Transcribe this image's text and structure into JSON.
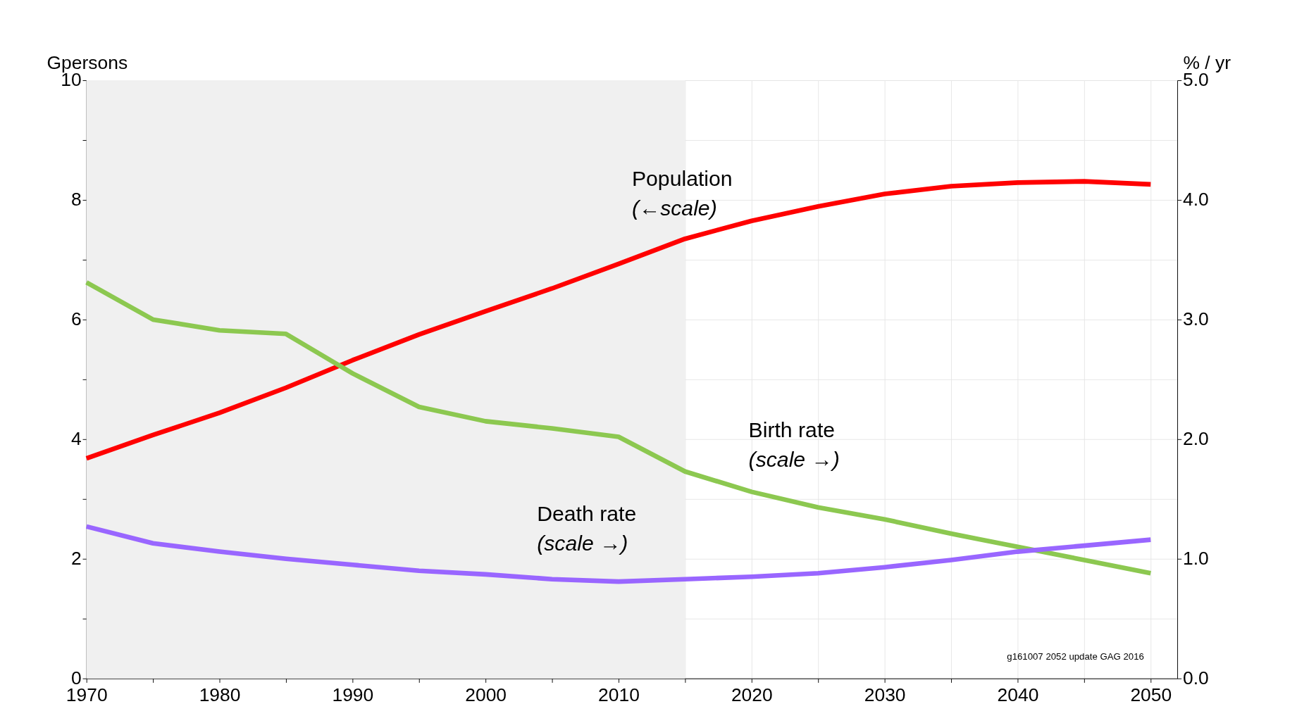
{
  "chart_data": {
    "type": "line",
    "xlabel": null,
    "ylabel": "Gpersons",
    "y2label": "% / yr",
    "x": [
      1970,
      1975,
      1980,
      1985,
      1990,
      1995,
      2000,
      2005,
      2010,
      2015,
      2020,
      2025,
      2030,
      2035,
      2040,
      2045,
      2050
    ],
    "series": [
      {
        "name": "Population",
        "color": "#ff0000",
        "values": [
          3.68,
          4.07,
          4.44,
          4.86,
          5.32,
          5.75,
          6.14,
          6.52,
          6.93,
          7.35,
          7.65,
          7.89,
          8.1,
          8.23,
          8.29,
          8.31,
          8.26
        ]
      },
      {
        "name": "Birth rate",
        "color": "#8cc850",
        "axis": "y2",
        "values": [
          3.31,
          3.0,
          2.91,
          2.88,
          2.55,
          2.27,
          2.15,
          2.09,
          2.02,
          1.73,
          1.56,
          1.43,
          1.33,
          1.21,
          1.1,
          0.99,
          0.88
        ]
      },
      {
        "name": "Death rate",
        "color": "#9966ff",
        "axis": "y2",
        "values": [
          1.27,
          1.13,
          1.06,
          1.0,
          0.95,
          0.9,
          0.87,
          0.83,
          0.81,
          0.83,
          0.85,
          0.88,
          0.93,
          0.99,
          1.06,
          1.11,
          1.16
        ]
      }
    ],
    "xlim": [
      1970,
      2052
    ],
    "xticks": [
      1970,
      {
        "value": 1975,
        "label": null
      },
      1980,
      {
        "value": 1985,
        "label": null
      },
      1990,
      {
        "value": 1995,
        "label": null
      },
      2000,
      {
        "value": 2005,
        "label": null
      },
      2010,
      {
        "value": 2015,
        "label": null
      },
      2020,
      {
        "value": 2025,
        "label": null
      },
      2030,
      {
        "value": 2035,
        "label": null
      },
      2040,
      {
        "value": 2045,
        "label": null
      },
      2050
    ],
    "ylim": [
      0,
      10
    ],
    "yticks": [
      0,
      {
        "value": 1,
        "label": null
      },
      2,
      {
        "value": 3,
        "label": null
      },
      4,
      {
        "value": 5,
        "label": null
      },
      6,
      {
        "value": 7,
        "label": null
      },
      8,
      {
        "value": 9,
        "label": null
      },
      10
    ],
    "y2lim": [
      0,
      5
    ],
    "y2ticks": [
      {
        "value": 0,
        "label": "0.0"
      },
      {
        "value": 1,
        "label": "1.0"
      },
      {
        "value": 2,
        "label": "2.0"
      },
      {
        "value": 3,
        "label": "3.0"
      },
      {
        "value": 4,
        "label": "4.0"
      },
      {
        "value": 5,
        "label": "5.0"
      }
    ],
    "bands": [
      {
        "axis": "x",
        "from": 1970,
        "to": 2015,
        "color": "#f0f0f0"
      }
    ],
    "annotations": [
      "(←scale)",
      "(scale →)",
      "(scale →)",
      "g161007 2052 update GAG 2016"
    ],
    "grid": true,
    "legend": false,
    "line_style": "solid",
    "marker": "none"
  }
}
